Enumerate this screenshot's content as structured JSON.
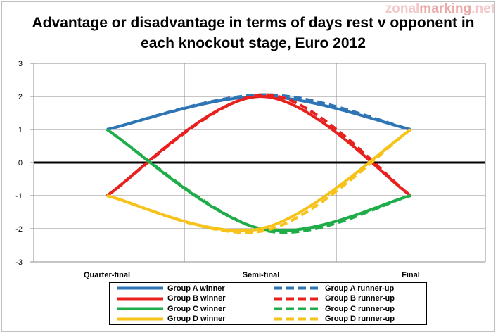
{
  "watermark": {
    "part1": "zonal",
    "part2": "marking",
    "part3": ".net"
  },
  "chart_data": {
    "type": "line",
    "title": "Advantage or disadvantage in terms of days rest v opponent in each knockout stage, Euro 2012",
    "categories": [
      "Quarter-final",
      "Semi-final",
      "Final"
    ],
    "ylim": [
      -3,
      3
    ],
    "yticks": [
      3,
      2,
      1,
      0,
      -1,
      -2,
      -3
    ],
    "grid": true,
    "smooth": true,
    "legend_position": "bottom",
    "series": [
      {
        "name": "Group A winner",
        "values": [
          1,
          2,
          1
        ],
        "color": "#2e75b6",
        "dashed": false
      },
      {
        "name": "Group A runner-up",
        "values": [
          1,
          2,
          1
        ],
        "color": "#2e75b6",
        "dashed": true
      },
      {
        "name": "Group B winner",
        "values": [
          -1,
          2,
          -1
        ],
        "color": "#e8201e",
        "dashed": false
      },
      {
        "name": "Group B runner-up",
        "values": [
          -1,
          2,
          -1
        ],
        "color": "#e8201e",
        "dashed": true
      },
      {
        "name": "Group C winner",
        "values": [
          1,
          -2,
          -1
        ],
        "color": "#1fad4a",
        "dashed": false
      },
      {
        "name": "Group C runner-up",
        "values": [
          1,
          -2,
          -1
        ],
        "color": "#1fad4a",
        "dashed": true
      },
      {
        "name": "Group D winner",
        "values": [
          -1,
          -2,
          1
        ],
        "color": "#f7c21a",
        "dashed": false
      },
      {
        "name": "Group D runner-up",
        "values": [
          -1,
          -2,
          1
        ],
        "color": "#f7c21a",
        "dashed": true
      }
    ]
  }
}
